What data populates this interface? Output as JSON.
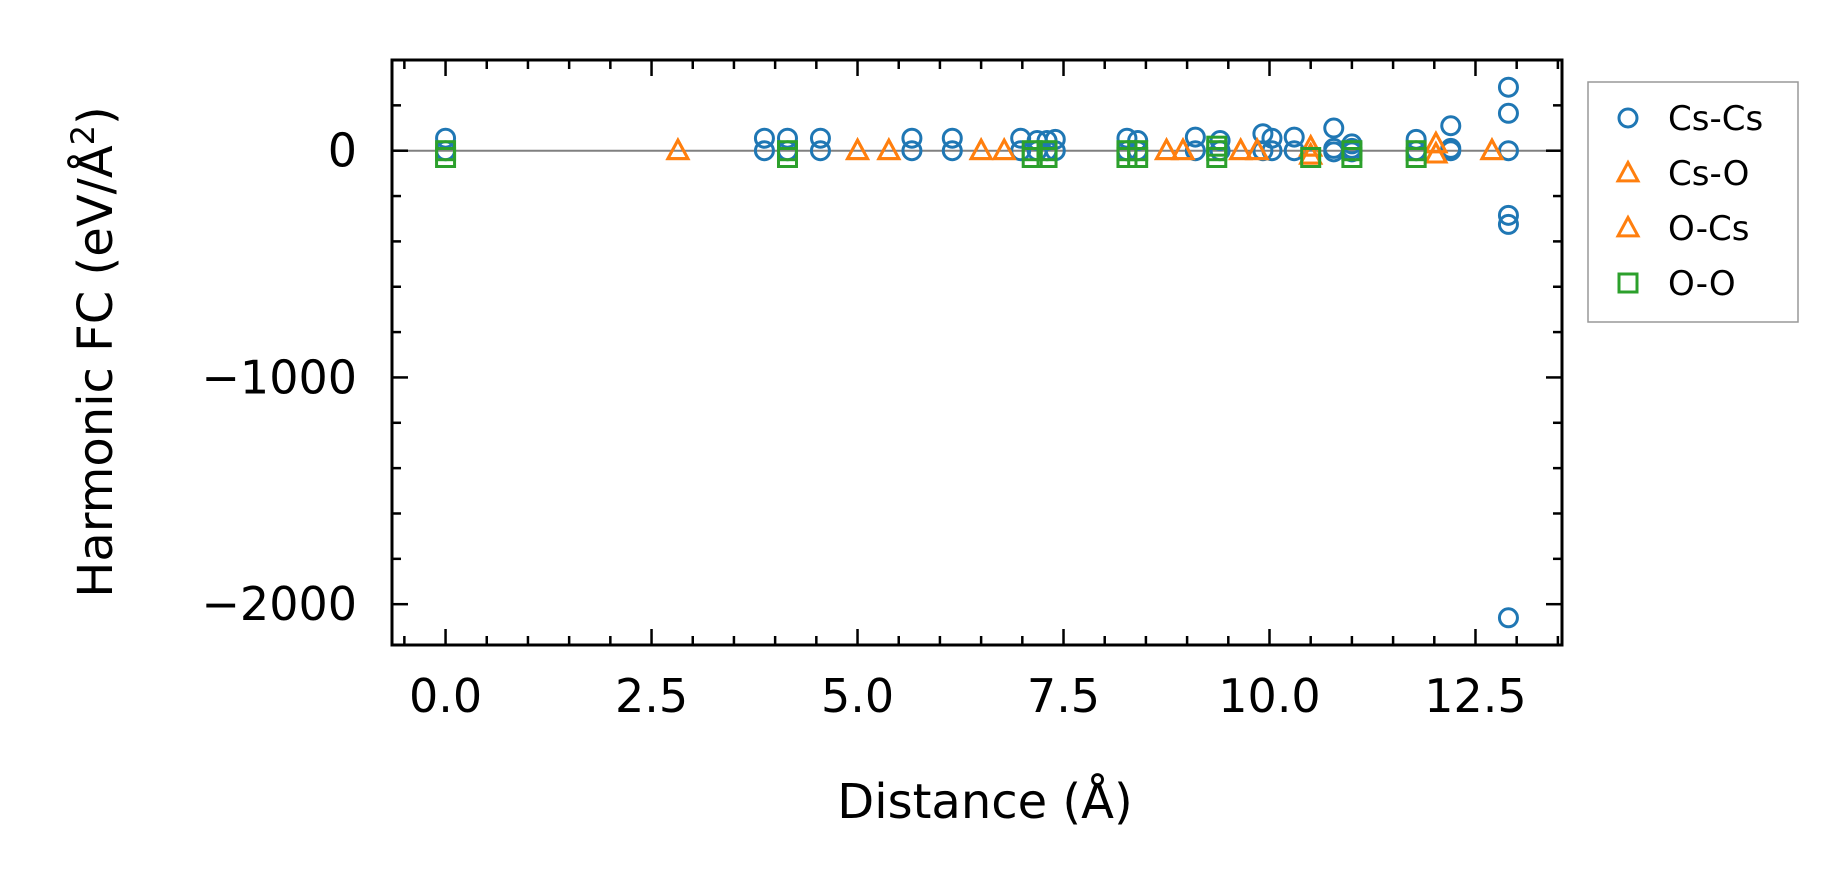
{
  "chart_data": {
    "type": "scatter",
    "xlabel": "Distance (Å)",
    "ylabel": "Harmonic FC (eV/Å²)",
    "ylabel_main": "Harmonic FC (eV/Å",
    "ylabel_sup": "2",
    "ylabel_close": ")",
    "xlim": [
      -0.65,
      13.55
    ],
    "ylim": [
      -2180,
      400
    ],
    "x_ticks": [
      0.0,
      2.5,
      5.0,
      7.5,
      10.0,
      12.5
    ],
    "x_tick_labels": [
      "0.0",
      "2.5",
      "5.0",
      "7.5",
      "10.0",
      "12.5"
    ],
    "y_ticks": [
      0,
      -1000,
      -2000
    ],
    "y_tick_labels": [
      "0",
      "−1000",
      "−2000"
    ],
    "zero_line": true,
    "grid": false,
    "legend": "outside-right",
    "series": [
      {
        "name": "Cs-Cs",
        "marker": "circle",
        "color": "#1f77b4",
        "x": [
          0.0,
          0.0,
          3.87,
          3.87,
          4.15,
          4.15,
          4.55,
          4.55,
          5.66,
          5.66,
          6.15,
          6.15,
          6.98,
          6.98,
          7.18,
          7.18,
          7.3,
          7.3,
          7.4,
          7.4,
          8.27,
          8.27,
          8.4,
          8.4,
          9.1,
          9.1,
          9.4,
          9.4,
          9.92,
          9.92,
          10.03,
          10.03,
          10.3,
          10.3,
          10.78,
          10.78,
          10.78,
          11.0,
          11.0,
          11.0,
          11.78,
          11.78,
          12.2,
          12.2,
          12.2,
          12.9,
          12.9,
          12.9,
          12.9,
          12.9,
          12.9
        ],
        "y": [
          55,
          0,
          55,
          0,
          55,
          0,
          55,
          0,
          55,
          0,
          55,
          0,
          55,
          0,
          45,
          0,
          45,
          0,
          50,
          0,
          55,
          0,
          45,
          0,
          60,
          0,
          45,
          0,
          75,
          0,
          55,
          0,
          60,
          0,
          100,
          10,
          -5,
          30,
          10,
          -5,
          50,
          0,
          110,
          10,
          0,
          280,
          165,
          0,
          -285,
          -325,
          -2060
        ]
      },
      {
        "name": "Cs-O",
        "marker": "triangle",
        "color": "#ff7f0e",
        "x": [
          2.82,
          5.0,
          5.38,
          6.5,
          6.78,
          8.75,
          8.95,
          9.65,
          9.85,
          10.5,
          10.5,
          12.02,
          12.02,
          12.7
        ],
        "y": [
          0,
          0,
          0,
          0,
          0,
          0,
          0,
          0,
          0,
          15,
          -20,
          30,
          -15,
          0
        ]
      },
      {
        "name": "O-Cs",
        "marker": "triangle",
        "color": "#ff7f0e",
        "x": [
          2.82,
          5.0,
          5.38,
          6.5,
          6.78,
          8.75,
          8.95,
          9.65,
          9.85,
          10.5,
          10.5,
          12.02,
          12.02,
          12.7
        ],
        "y": [
          0,
          0,
          0,
          0,
          0,
          0,
          0,
          0,
          0,
          15,
          -20,
          30,
          -15,
          0
        ]
      },
      {
        "name": "O-O",
        "marker": "square",
        "color": "#2ca02c",
        "x": [
          0.0,
          0.0,
          4.15,
          4.15,
          7.12,
          7.12,
          7.3,
          7.3,
          8.27,
          8.27,
          8.4,
          8.4,
          9.36,
          9.36,
          9.36,
          10.5,
          11.0,
          11.0,
          11.78,
          11.78
        ],
        "y": [
          0,
          -30,
          0,
          -30,
          0,
          -30,
          0,
          -30,
          0,
          -30,
          0,
          -30,
          20,
          0,
          -30,
          -30,
          0,
          -30,
          0,
          -30
        ]
      }
    ]
  }
}
